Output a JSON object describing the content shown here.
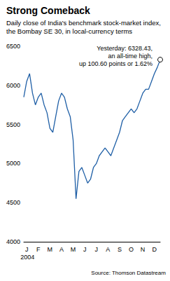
{
  "chart_data": {
    "type": "line",
    "title": "Strong Comeback",
    "subtitle": "Daily close of India's benchmark stock-market index, the Bombay SE 30, in local-currency terms",
    "categories": [
      null,
      "J",
      null,
      null,
      null,
      "F",
      null,
      null,
      null,
      "M",
      null,
      null,
      null,
      "A",
      null,
      null,
      null,
      "M",
      null,
      null,
      null,
      "J",
      null,
      null,
      null,
      "J",
      null,
      null,
      null,
      "A",
      null,
      null,
      null,
      "S",
      null,
      null,
      null,
      "O",
      null,
      null,
      null,
      "N",
      null,
      null,
      null,
      "D",
      null,
      null
    ],
    "values": [
      5850,
      6050,
      6150,
      5900,
      5750,
      5850,
      5900,
      5750,
      5650,
      5450,
      5400,
      5600,
      5800,
      5900,
      5850,
      5700,
      5600,
      5300,
      4550,
      4900,
      4950,
      4850,
      4750,
      4800,
      4950,
      5000,
      5100,
      5150,
      5200,
      5150,
      5100,
      5200,
      5300,
      5400,
      5550,
      5600,
      5650,
      5700,
      5650,
      5700,
      5800,
      5900,
      5950,
      5950,
      6050,
      6150,
      6230,
      6328.43
    ],
    "color": "#1f5fa6",
    "ylim": [
      4000,
      6500
    ],
    "yticks": [
      4000,
      4500,
      5000,
      5500,
      6000,
      6500
    ],
    "grid": false,
    "xlabel": "2004",
    "annotation": [
      "Yesterday: 6328.43,",
      "an all-time high,",
      "up 100.60 points or 1.62%"
    ],
    "source": "Source: Thomson Datastream"
  }
}
